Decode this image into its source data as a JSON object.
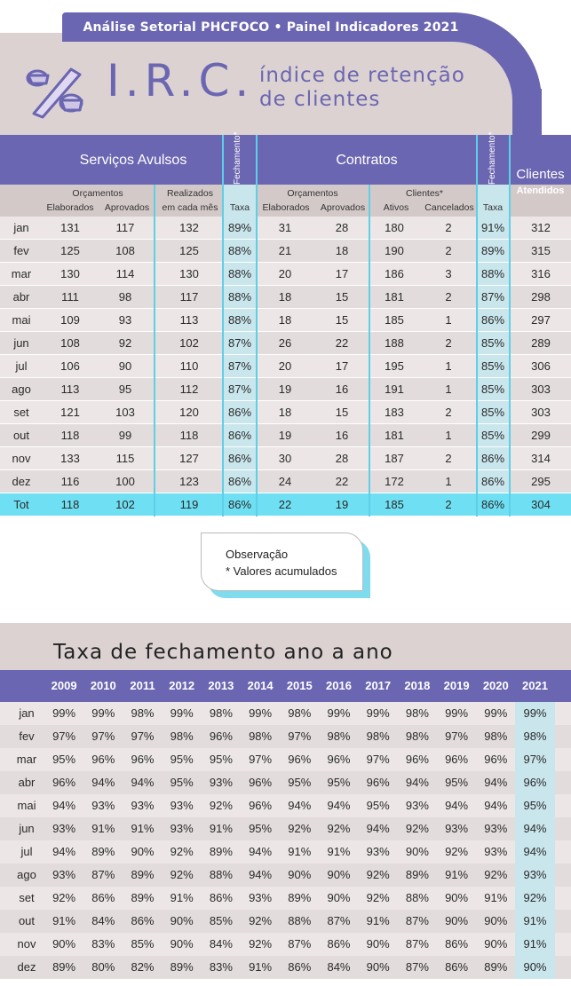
{
  "header": {
    "banner": "Análise Setorial PHCFOCO • Painel Indicadores 2021",
    "title": "I.R.C.",
    "subtitle_line1": "índice de retenção",
    "subtitle_line2": "de clientes",
    "icon": "percent-icon"
  },
  "main_table": {
    "groups": {
      "servicos": "Serviços Avulsos",
      "contratos": "Contratos",
      "fechamento": "Fechamento*",
      "clientes": "Clientes",
      "atendidos": "Atendidos"
    },
    "subgroups": {
      "orcamentos_sa": "Orçamentos",
      "realizados": "Realizados",
      "realizados2": "em cada mês",
      "orcamentos_c": "Orçamentos",
      "clientes_c": "Clientes*"
    },
    "columns": {
      "elaborados": "Elaborados",
      "aprovados": "Aprovados",
      "taxa": "Taxa",
      "elaborados_c": "Elaborados",
      "aprovados_c": "Aprovados",
      "ativos": "Ativos",
      "cancelados": "Cancelados"
    },
    "rows": [
      [
        "jan",
        "131",
        "117",
        "132",
        "89%",
        "31",
        "28",
        "180",
        "2",
        "91%",
        "312"
      ],
      [
        "fev",
        "125",
        "108",
        "125",
        "88%",
        "21",
        "18",
        "190",
        "2",
        "89%",
        "315"
      ],
      [
        "mar",
        "130",
        "114",
        "130",
        "88%",
        "20",
        "17",
        "186",
        "3",
        "88%",
        "316"
      ],
      [
        "abr",
        "111",
        "98",
        "117",
        "88%",
        "18",
        "15",
        "181",
        "2",
        "87%",
        "298"
      ],
      [
        "mai",
        "109",
        "93",
        "113",
        "88%",
        "18",
        "15",
        "185",
        "1",
        "86%",
        "297"
      ],
      [
        "jun",
        "108",
        "92",
        "102",
        "87%",
        "26",
        "22",
        "188",
        "2",
        "85%",
        "289"
      ],
      [
        "jul",
        "106",
        "90",
        "110",
        "87%",
        "20",
        "17",
        "195",
        "1",
        "85%",
        "306"
      ],
      [
        "ago",
        "113",
        "95",
        "112",
        "87%",
        "19",
        "16",
        "191",
        "1",
        "85%",
        "303"
      ],
      [
        "set",
        "121",
        "103",
        "120",
        "86%",
        "18",
        "15",
        "183",
        "2",
        "85%",
        "303"
      ],
      [
        "out",
        "118",
        "99",
        "118",
        "86%",
        "19",
        "16",
        "181",
        "1",
        "85%",
        "299"
      ],
      [
        "nov",
        "133",
        "115",
        "127",
        "86%",
        "30",
        "28",
        "187",
        "2",
        "86%",
        "314"
      ],
      [
        "dez",
        "116",
        "100",
        "123",
        "86%",
        "24",
        "22",
        "172",
        "1",
        "86%",
        "295"
      ]
    ],
    "total": [
      "Tot",
      "118",
      "102",
      "119",
      "86%",
      "22",
      "19",
      "185",
      "2",
      "86%",
      "304"
    ]
  },
  "note": {
    "line1": "Observação",
    "line2": "* Valores acumulados"
  },
  "year_table": {
    "title": "Taxa de fechamento ano a ano",
    "years": [
      "2009",
      "2010",
      "2011",
      "2012",
      "2013",
      "2014",
      "2015",
      "2016",
      "2017",
      "2018",
      "2019",
      "2020",
      "2021"
    ],
    "rows": [
      [
        "jan",
        "99%",
        "99%",
        "98%",
        "99%",
        "98%",
        "99%",
        "98%",
        "99%",
        "99%",
        "98%",
        "99%",
        "99%",
        "99%"
      ],
      [
        "fev",
        "97%",
        "97%",
        "97%",
        "98%",
        "96%",
        "98%",
        "97%",
        "98%",
        "98%",
        "98%",
        "97%",
        "98%",
        "98%"
      ],
      [
        "mar",
        "95%",
        "96%",
        "96%",
        "95%",
        "95%",
        "97%",
        "96%",
        "96%",
        "97%",
        "96%",
        "96%",
        "96%",
        "97%"
      ],
      [
        "abr",
        "96%",
        "94%",
        "94%",
        "95%",
        "93%",
        "96%",
        "95%",
        "95%",
        "96%",
        "94%",
        "95%",
        "94%",
        "96%"
      ],
      [
        "mai",
        "94%",
        "93%",
        "93%",
        "93%",
        "92%",
        "96%",
        "94%",
        "94%",
        "95%",
        "93%",
        "94%",
        "94%",
        "95%"
      ],
      [
        "jun",
        "93%",
        "91%",
        "91%",
        "93%",
        "91%",
        "95%",
        "92%",
        "92%",
        "94%",
        "92%",
        "93%",
        "93%",
        "94%"
      ],
      [
        "jul",
        "94%",
        "89%",
        "90%",
        "92%",
        "89%",
        "94%",
        "91%",
        "91%",
        "93%",
        "90%",
        "92%",
        "93%",
        "94%"
      ],
      [
        "ago",
        "93%",
        "87%",
        "89%",
        "92%",
        "88%",
        "94%",
        "90%",
        "90%",
        "92%",
        "89%",
        "91%",
        "92%",
        "93%"
      ],
      [
        "set",
        "92%",
        "86%",
        "89%",
        "91%",
        "86%",
        "93%",
        "89%",
        "90%",
        "92%",
        "88%",
        "90%",
        "91%",
        "92%"
      ],
      [
        "out",
        "91%",
        "84%",
        "86%",
        "90%",
        "85%",
        "92%",
        "88%",
        "87%",
        "91%",
        "87%",
        "90%",
        "90%",
        "91%"
      ],
      [
        "nov",
        "90%",
        "83%",
        "85%",
        "90%",
        "84%",
        "92%",
        "87%",
        "86%",
        "90%",
        "87%",
        "86%",
        "90%",
        "91%"
      ],
      [
        "dez",
        "89%",
        "80%",
        "82%",
        "89%",
        "83%",
        "91%",
        "86%",
        "84%",
        "90%",
        "87%",
        "86%",
        "89%",
        "90%"
      ]
    ]
  },
  "colors": {
    "accent": "#6b66b1",
    "highlight": "#6fe0f3",
    "taxa_bg": "#c9e6ec",
    "header_bg": "#dcd2d2"
  }
}
